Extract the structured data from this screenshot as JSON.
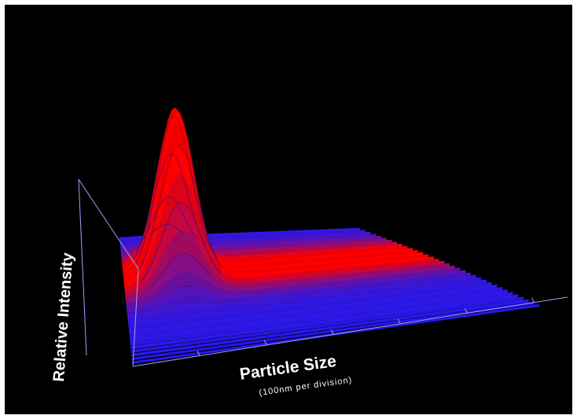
{
  "chart_data": {
    "type": "area",
    "title": "",
    "xlabel": "Particle Size",
    "xlabel_sub": "(100nm per division)",
    "ylabel": "Relative Intensity",
    "peak_x_divisions": 1.2,
    "width_x_divisions": 0.5,
    "x_range_divisions": [
      0,
      6
    ],
    "grid": false,
    "legend": "none",
    "low_color": "#1a1aff",
    "high_color": "#ff0000",
    "background": "#000000",
    "axis_color": "#9aa0ff"
  }
}
